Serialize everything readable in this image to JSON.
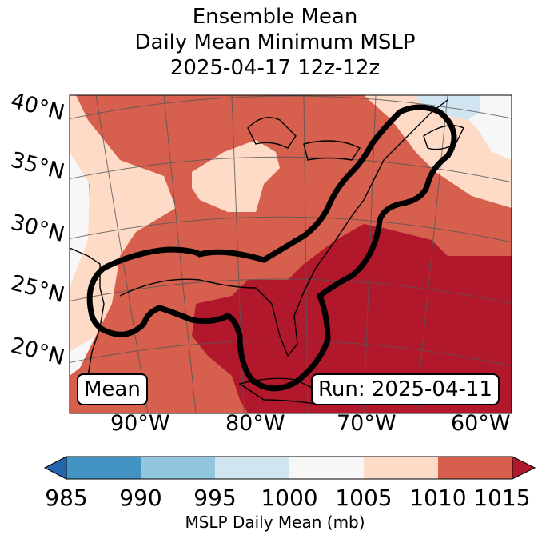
{
  "title": {
    "line1": "Ensemble Mean",
    "line2": "Daily Mean Minimum MSLP",
    "line3": "2025-04-17 12z-12z"
  },
  "map": {
    "lat_labels": [
      "40°N",
      "35°N",
      "30°N",
      "25°N",
      "20°N"
    ],
    "lon_labels": [
      "90°W",
      "80°W",
      "70°W",
      "60°W"
    ],
    "mean_label": "Mean",
    "run_label": "Run: 2025-04-11"
  },
  "colorbar": {
    "ticks": [
      "985",
      "990",
      "995",
      "1000",
      "1005",
      "1010",
      "1015"
    ],
    "title": "MSLP Daily Mean (mb)",
    "colors": {
      "below": "#2166ac",
      "985-990": "#4393c3",
      "990-995": "#92c5de",
      "995-1000": "#d1e5f0",
      "1000-1005": "#f7f7f7",
      "1005-1010": "#fddbc7",
      "1010-1015": "#d6604d",
      "above": "#b2182b"
    }
  }
}
